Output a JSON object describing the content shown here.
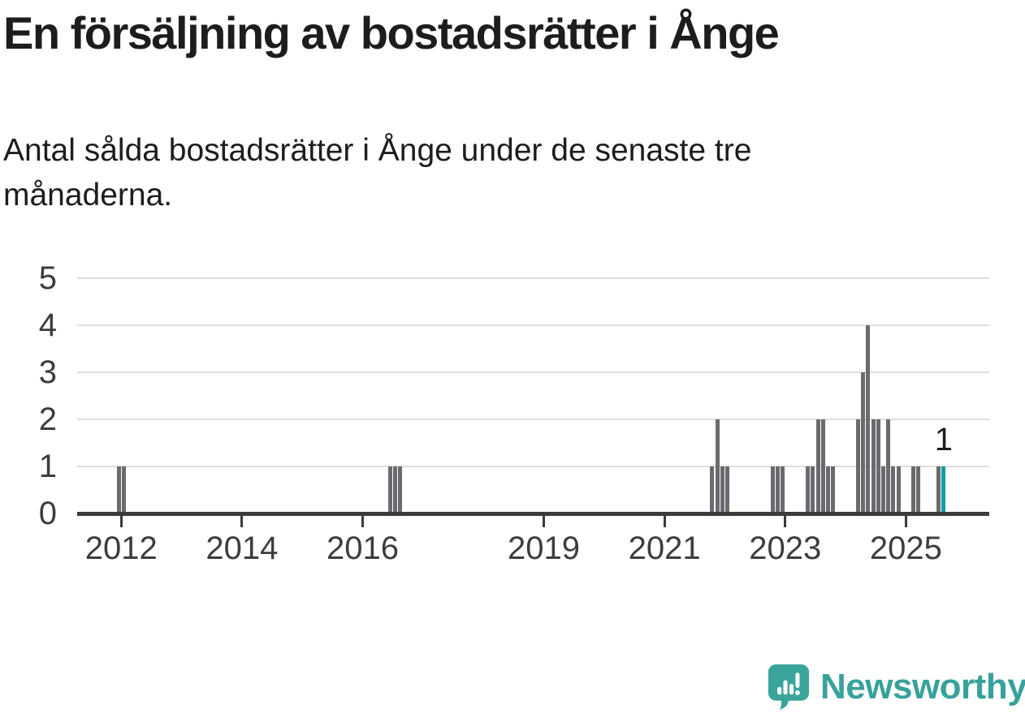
{
  "header": {
    "title": "En försäljning av bostadsrätter i Ånge",
    "subtitle_lines": [
      "Antal sålda bostadsrätter i Ånge under de senaste tre",
      "månaderna."
    ]
  },
  "footer": {
    "brand": "Newsworthy",
    "logo_icon": "speech-bubble-bar-chart-icon"
  },
  "colors": {
    "text": "#1d1d1b",
    "axis_label": "#3d3d3d",
    "gridline": "#dedede",
    "axis_line": "#3b3b3d",
    "bar": "#6a6a6f",
    "highlight": "#109e9e",
    "logo_teal": "#3aa49a"
  },
  "chart_data": {
    "type": "bar",
    "title": "En försäljning av bostadsrätter i Ånge",
    "subtitle": "Antal sålda bostadsrätter i Ånge under de senaste tre månaderna.",
    "xlabel": "",
    "ylabel": "",
    "grid": true,
    "ylim": [
      0,
      5
    ],
    "yticks": [
      0,
      1,
      2,
      3,
      4,
      5
    ],
    "xlim_years": [
      2011.27,
      2026.38
    ],
    "xtick_years": [
      2012,
      2014,
      2016,
      2019,
      2021,
      2023,
      2025
    ],
    "bar_color": "#6a6a6f",
    "highlight_color": "#109e9e",
    "annotation": {
      "text": "1",
      "month": "2025-08"
    },
    "series": [
      {
        "month": "2011-12",
        "value": 1
      },
      {
        "month": "2012-01",
        "value": 1
      },
      {
        "month": "2016-06",
        "value": 1
      },
      {
        "month": "2016-07",
        "value": 1
      },
      {
        "month": "2016-08",
        "value": 1
      },
      {
        "month": "2021-10",
        "value": 1
      },
      {
        "month": "2021-11",
        "value": 2
      },
      {
        "month": "2021-12",
        "value": 1
      },
      {
        "month": "2022-01",
        "value": 1
      },
      {
        "month": "2022-10",
        "value": 1
      },
      {
        "month": "2022-11",
        "value": 1
      },
      {
        "month": "2022-12",
        "value": 1
      },
      {
        "month": "2023-05",
        "value": 1
      },
      {
        "month": "2023-06",
        "value": 1
      },
      {
        "month": "2023-07",
        "value": 2
      },
      {
        "month": "2023-08",
        "value": 2
      },
      {
        "month": "2023-09",
        "value": 1
      },
      {
        "month": "2023-10",
        "value": 1
      },
      {
        "month": "2024-03",
        "value": 2
      },
      {
        "month": "2024-04",
        "value": 3
      },
      {
        "month": "2024-05",
        "value": 4
      },
      {
        "month": "2024-06",
        "value": 2
      },
      {
        "month": "2024-07",
        "value": 2
      },
      {
        "month": "2024-08",
        "value": 1
      },
      {
        "month": "2024-09",
        "value": 2
      },
      {
        "month": "2024-10",
        "value": 1
      },
      {
        "month": "2024-11",
        "value": 1
      },
      {
        "month": "2025-02",
        "value": 1
      },
      {
        "month": "2025-03",
        "value": 1
      },
      {
        "month": "2025-07",
        "value": 1
      },
      {
        "month": "2025-08",
        "value": 1,
        "highlight": true
      }
    ]
  }
}
